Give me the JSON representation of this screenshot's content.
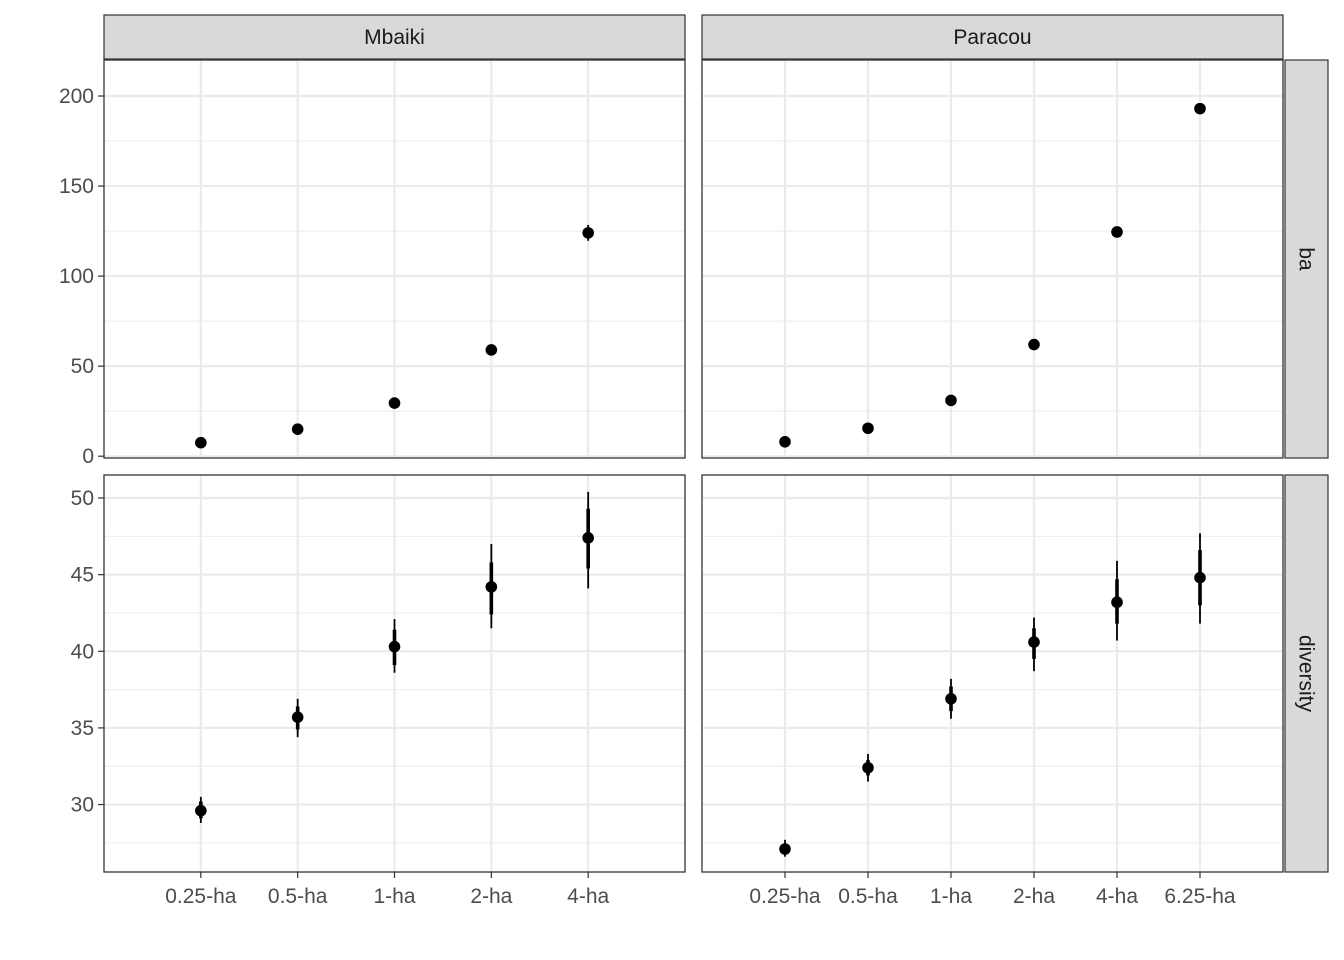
{
  "chart_data": {
    "type": "scatter",
    "facet_columns": [
      "Mbaiki",
      "Paracou"
    ],
    "facet_rows": [
      "ba",
      "diversity"
    ],
    "grid": true,
    "panels": [
      {
        "column": "Mbaiki",
        "row": "ba",
        "categories": [
          "0.25-ha",
          "0.5-ha",
          "1-ha",
          "2-ha",
          "4-ha"
        ],
        "values": [
          7.5,
          15,
          29.5,
          59,
          124
        ],
        "inner_lower": [
          6.8,
          14.2,
          28.6,
          57.6,
          121.6
        ],
        "inner_upper": [
          8.2,
          15.8,
          30.4,
          60.4,
          126.4
        ],
        "outer_lower": [
          6.2,
          13.6,
          27.9,
          56.6,
          119.6
        ],
        "outer_upper": [
          8.8,
          16.4,
          31.1,
          61.4,
          128.4
        ]
      },
      {
        "column": "Paracou",
        "row": "ba",
        "categories": [
          "0.25-ha",
          "0.5-ha",
          "1-ha",
          "2-ha",
          "4-ha",
          "6.25-ha"
        ],
        "values": [
          8,
          15.5,
          31,
          62,
          124.5,
          193
        ],
        "inner_lower": [
          7.4,
          14.9,
          30.3,
          61,
          123.3,
          191.8
        ],
        "inner_upper": [
          8.6,
          16.1,
          31.7,
          63,
          125.7,
          194.2
        ],
        "outer_lower": [
          7,
          14.4,
          29.8,
          60.3,
          122.3,
          190.8
        ],
        "outer_upper": [
          9,
          16.6,
          32.2,
          63.7,
          126.7,
          195.2
        ]
      },
      {
        "column": "Mbaiki",
        "row": "diversity",
        "categories": [
          "0.25-ha",
          "0.5-ha",
          "1-ha",
          "2-ha",
          "4-ha"
        ],
        "values": [
          29.6,
          35.7,
          40.3,
          44.2,
          47.4
        ],
        "inner_lower": [
          29.1,
          34.9,
          39.1,
          42.4,
          45.4
        ],
        "inner_upper": [
          30.2,
          36.4,
          41.4,
          45.8,
          49.3
        ],
        "outer_lower": [
          28.8,
          34.4,
          38.6,
          41.5,
          44.1
        ],
        "outer_upper": [
          30.5,
          36.9,
          42.1,
          47.0,
          50.4
        ]
      },
      {
        "column": "Paracou",
        "row": "diversity",
        "categories": [
          "0.25-ha",
          "0.5-ha",
          "1-ha",
          "2-ha",
          "4-ha",
          "6.25-ha"
        ],
        "values": [
          27.1,
          32.4,
          36.9,
          40.6,
          43.2,
          44.8
        ],
        "inner_lower": [
          26.8,
          31.9,
          36.1,
          39.5,
          41.8,
          43.0
        ],
        "inner_upper": [
          27.4,
          32.9,
          37.7,
          41.5,
          44.7,
          46.6
        ],
        "outer_lower": [
          26.6,
          31.5,
          35.6,
          38.7,
          40.7,
          41.8
        ],
        "outer_upper": [
          27.7,
          33.3,
          38.2,
          42.2,
          45.9,
          47.7
        ]
      }
    ],
    "y_axes": {
      "ba": {
        "ylim": [
          -1,
          220
        ],
        "ticks": [
          0,
          50,
          100,
          150,
          200
        ]
      },
      "diversity": {
        "ylim": [
          25.6,
          51.5
        ],
        "ticks": [
          30,
          35,
          40,
          45,
          50
        ]
      }
    },
    "colors": {
      "point": "#000000",
      "grid": "#ebebeb",
      "panel_border": "#333333",
      "strip_fill": "#d9d9d9",
      "tick_text": "#4d4d4d"
    }
  }
}
